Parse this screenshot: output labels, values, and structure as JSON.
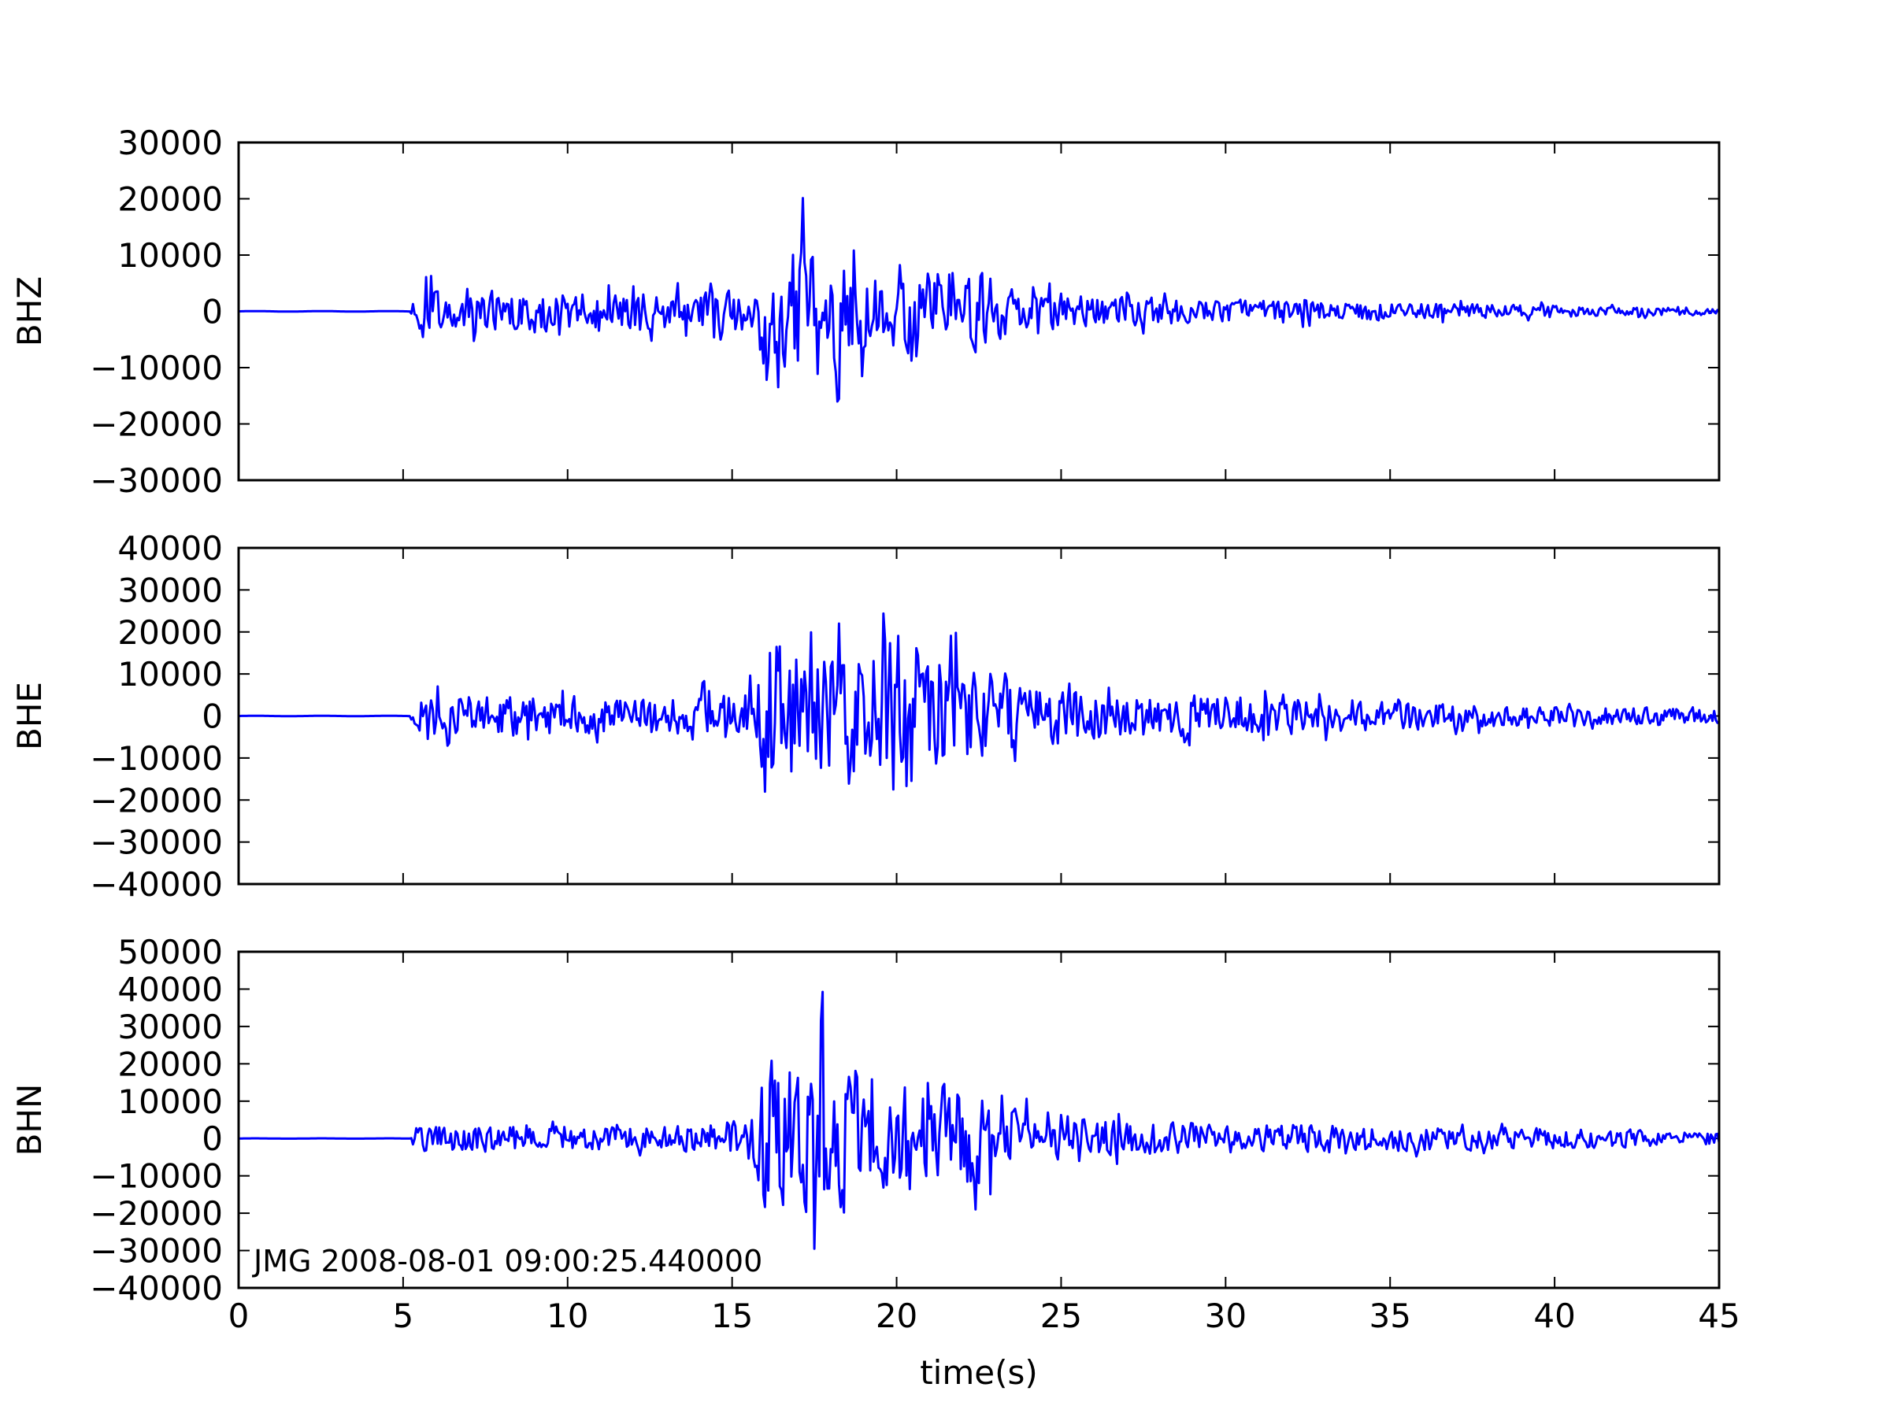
{
  "chart_data": {
    "type": "line",
    "xlabel": "time(s)",
    "xlim": [
      0,
      45
    ],
    "x_ticks": [
      0,
      5,
      10,
      15,
      20,
      25,
      30,
      35,
      40,
      45
    ],
    "x_tick_labels": [
      "0",
      "5",
      "10",
      "15",
      "20",
      "25",
      "30",
      "35",
      "40",
      "45"
    ],
    "line_color": "#0000ff",
    "grid": false,
    "annotation": "JMG  2008-08-01 09:00:25.440000",
    "time_step": 0.05,
    "panels": [
      {
        "ylabel": "BHZ",
        "ylim": [
          -30000,
          30000
        ],
        "y_ticks": [
          -30000,
          -20000,
          -10000,
          0,
          10000,
          20000,
          30000
        ],
        "y_tick_labels": [
          "−30000",
          "−20000",
          "−10000",
          "0",
          "10000",
          "20000",
          "30000"
        ],
        "series": {
          "onset": 5.2,
          "envelope": [
            [
              0,
              0
            ],
            [
              5.0,
              0
            ],
            [
              5.3,
              3000
            ],
            [
              5.6,
              7500
            ],
            [
              7,
              5000
            ],
            [
              9,
              5500
            ],
            [
              12,
              5000
            ],
            [
              14,
              4500
            ],
            [
              15.6,
              6000
            ],
            [
              16,
              15500
            ],
            [
              17,
              18500
            ],
            [
              18,
              16000
            ],
            [
              19,
              11000
            ],
            [
              20,
              10000
            ],
            [
              21,
              12000
            ],
            [
              22,
              11000
            ],
            [
              23,
              9000
            ],
            [
              24,
              5000
            ],
            [
              26,
              4000
            ],
            [
              30,
              3000
            ],
            [
              35,
              2200
            ],
            [
              40,
              1600
            ],
            [
              45,
              1100
            ]
          ]
        }
      },
      {
        "ylabel": "BHE",
        "ylim": [
          -40000,
          40000
        ],
        "y_ticks": [
          -40000,
          -30000,
          -20000,
          -10000,
          0,
          10000,
          20000,
          30000,
          40000
        ],
        "y_tick_labels": [
          "−40000",
          "−30000",
          "−20000",
          "−10000",
          "0",
          "10000",
          "20000",
          "30000",
          "40000"
        ],
        "series": {
          "onset": 5.2,
          "envelope": [
            [
              0,
              0
            ],
            [
              5.0,
              0
            ],
            [
              5.3,
              3000
            ],
            [
              5.8,
              10000
            ],
            [
              7,
              7000
            ],
            [
              9,
              8000
            ],
            [
              12,
              6000
            ],
            [
              14,
              7000
            ],
            [
              15.6,
              9000
            ],
            [
              16,
              28000
            ],
            [
              17,
              30000
            ],
            [
              18,
              25000
            ],
            [
              19,
              22000
            ],
            [
              20,
              30000
            ],
            [
              21,
              24000
            ],
            [
              22,
              20000
            ],
            [
              23,
              16000
            ],
            [
              24,
              11000
            ],
            [
              26,
              8000
            ],
            [
              30,
              7000
            ],
            [
              35,
              5000
            ],
            [
              40,
              3300
            ],
            [
              45,
              2500
            ]
          ]
        }
      },
      {
        "ylabel": "BHN",
        "ylim": [
          -40000,
          50000
        ],
        "y_ticks": [
          -40000,
          -30000,
          -20000,
          -10000,
          0,
          10000,
          20000,
          30000,
          40000,
          50000
        ],
        "y_tick_labels": [
          "−40000",
          "−30000",
          "−20000",
          "−10000",
          "0",
          "10000",
          "20000",
          "30000",
          "40000",
          "50000"
        ],
        "series": {
          "onset": 5.2,
          "envelope": [
            [
              0,
              0
            ],
            [
              5.0,
              0
            ],
            [
              5.3,
              3000
            ],
            [
              5.8,
              5500
            ],
            [
              8,
              5000
            ],
            [
              12,
              4500
            ],
            [
              14,
              5500
            ],
            [
              15.6,
              8000
            ],
            [
              16,
              26000
            ],
            [
              17,
              32000
            ],
            [
              18,
              33000
            ],
            [
              19,
              25000
            ],
            [
              20,
              22000
            ],
            [
              21,
              20000
            ],
            [
              22,
              22000
            ],
            [
              23,
              14000
            ],
            [
              24,
              12000
            ],
            [
              26,
              8000
            ],
            [
              30,
              6000
            ],
            [
              35,
              5000
            ],
            [
              40,
              4000
            ],
            [
              45,
              2500
            ]
          ]
        }
      }
    ]
  }
}
